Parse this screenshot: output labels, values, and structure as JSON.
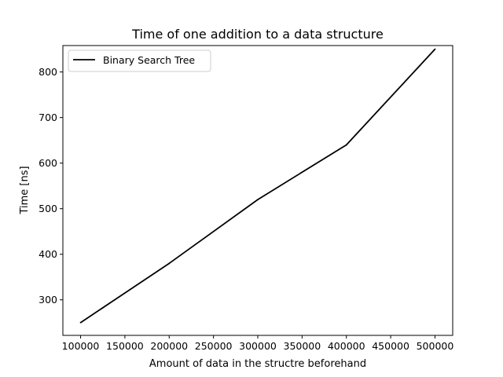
{
  "chart_data": {
    "type": "line",
    "title": "Time of one addition to a data structure",
    "xlabel": "Amount of data in the structre beforehand",
    "ylabel": "Time [ns]",
    "xlim": [
      80000,
      520000
    ],
    "ylim": [
      222,
      858
    ],
    "x_ticks": [
      100000,
      150000,
      200000,
      250000,
      300000,
      350000,
      400000,
      450000,
      500000
    ],
    "y_ticks": [
      300,
      400,
      500,
      600,
      700,
      800
    ],
    "grid": false,
    "legend_position": "upper-left",
    "series": [
      {
        "name": "Binary Search Tree",
        "color": "#000000",
        "x": [
          100000,
          200000,
          300000,
          400000,
          500000
        ],
        "y": [
          250,
          380,
          520,
          640,
          850
        ]
      }
    ]
  }
}
